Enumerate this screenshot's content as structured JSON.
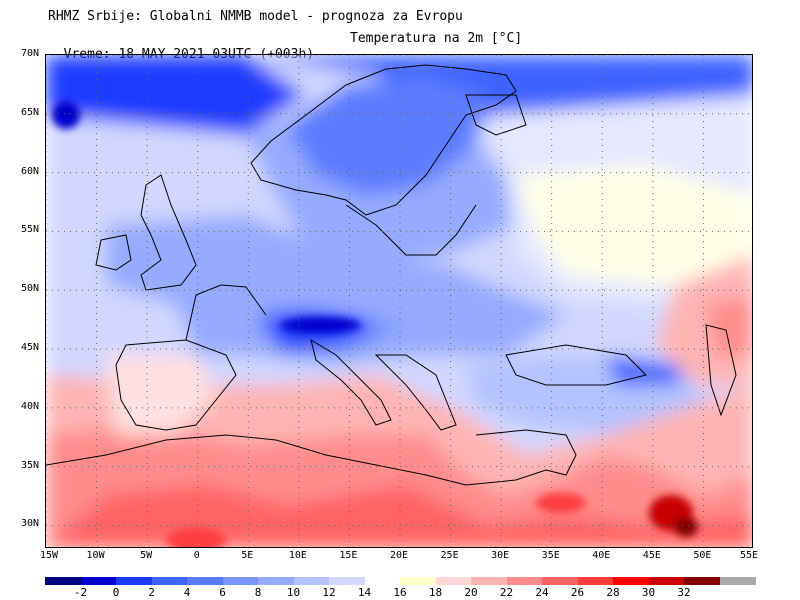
{
  "title": {
    "line1": "RHMZ Srbije: Globalni NMMB model - prognoza za Evropu",
    "line2": "Vreme: 18 MAY 2021 03UTC (+003h)",
    "field": "Temperatura na 2m [°C]"
  },
  "map": {
    "lat_labels": [
      "70N",
      "65N",
      "60N",
      "55N",
      "50N",
      "45N",
      "40N",
      "35N",
      "30N"
    ],
    "lon_labels": [
      "15W",
      "10W",
      "5W",
      "0",
      "5E",
      "10E",
      "15E",
      "20E",
      "25E",
      "30E",
      "35E",
      "40E",
      "45E",
      "50E",
      "55E"
    ],
    "lat_values": [
      70,
      65,
      60,
      55,
      50,
      45,
      40,
      35,
      30
    ],
    "lon_values": [
      -15,
      -10,
      -5,
      0,
      5,
      10,
      15,
      20,
      25,
      30,
      35,
      40,
      45,
      50,
      55
    ],
    "lon_range": [
      -15,
      55
    ],
    "lat_range": [
      28,
      70
    ],
    "grid": "dotted"
  },
  "legend": {
    "labels": [
      "-2",
      "0",
      "2",
      "4",
      "6",
      "8",
      "10",
      "12",
      "14",
      "16",
      "18",
      "20",
      "22",
      "24",
      "26",
      "28",
      "30",
      "32"
    ],
    "colors": [
      "#000080",
      "#0000cd",
      "#1e3cff",
      "#3c64ff",
      "#5a7dff",
      "#7896ff",
      "#96aaff",
      "#b4c3ff",
      "#d2d7ff",
      "#ffffff",
      "#ffffc8",
      "#ffd7d7",
      "#ffb4b4",
      "#ff8c8c",
      "#ff6464",
      "#ff3c3c",
      "#ff0000",
      "#c80000",
      "#820000",
      "#aaaaaa"
    ]
  }
}
